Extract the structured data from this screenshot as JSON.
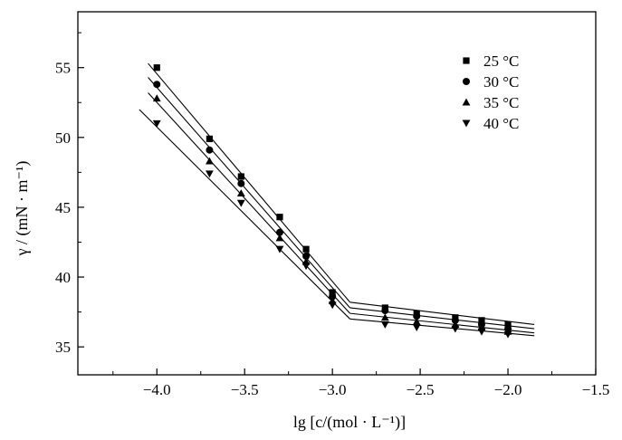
{
  "chart_data": {
    "type": "scatter",
    "xlabel": "lg [c/(mol · L⁻¹)]",
    "ylabel": "γ / (mN · m⁻¹)",
    "xlim": [
      -4.45,
      -1.5
    ],
    "ylim": [
      33,
      59
    ],
    "xticks": [
      -4.0,
      -3.5,
      -3.0,
      -2.5,
      -2.0,
      -1.5
    ],
    "xtick_labels": [
      "−4.0",
      "−3.5",
      "−3.0",
      "−2.5",
      "−2.0",
      "−1.5"
    ],
    "yticks": [
      35,
      40,
      45,
      50,
      55
    ],
    "ytick_labels": [
      "35",
      "40",
      "45",
      "50",
      "55"
    ],
    "legend_position": "top-right",
    "grid": false,
    "x": [
      -4.0,
      -3.7,
      -3.52,
      -3.3,
      -3.15,
      -3.0,
      -2.7,
      -2.52,
      -2.3,
      -2.15,
      -2.0
    ],
    "series": [
      {
        "name": "25 °C",
        "marker": "square",
        "values": [
          55.0,
          49.9,
          47.2,
          44.3,
          42.0,
          38.9,
          37.8,
          37.4,
          37.1,
          36.9,
          36.6
        ],
        "fit": [
          {
            "x": [
              -4.05,
              -2.9
            ],
            "y": [
              55.3,
              38.2
            ]
          },
          {
            "x": [
              -2.9,
              -1.85
            ],
            "y": [
              38.2,
              36.6
            ]
          }
        ]
      },
      {
        "name": "30 °C",
        "marker": "circle",
        "values": [
          53.8,
          49.1,
          46.7,
          43.2,
          41.5,
          38.6,
          37.6,
          37.2,
          36.9,
          36.6,
          36.3
        ],
        "fit": [
          {
            "x": [
              -4.05,
              -2.9
            ],
            "y": [
              54.3,
              37.8
            ]
          },
          {
            "x": [
              -2.9,
              -1.85
            ],
            "y": [
              37.8,
              36.3
            ]
          }
        ]
      },
      {
        "name": "35 °C",
        "marker": "triangle-up",
        "values": [
          52.8,
          48.3,
          46.0,
          42.8,
          41.1,
          38.3,
          37.1,
          36.8,
          36.6,
          36.4,
          36.1
        ],
        "fit": [
          {
            "x": [
              -4.05,
              -2.9
            ],
            "y": [
              53.2,
              37.4
            ]
          },
          {
            "x": [
              -2.9,
              -1.85
            ],
            "y": [
              37.4,
              36.0
            ]
          }
        ]
      },
      {
        "name": "40 °C",
        "marker": "triangle-down",
        "values": [
          51.0,
          47.4,
          45.3,
          42.0,
          40.8,
          38.0,
          36.6,
          36.4,
          36.3,
          36.1,
          35.9
        ],
        "fit": [
          {
            "x": [
              -4.1,
              -2.9
            ],
            "y": [
              52.0,
              37.0
            ]
          },
          {
            "x": [
              -2.9,
              -1.85
            ],
            "y": [
              37.0,
              35.8
            ]
          }
        ]
      }
    ]
  }
}
